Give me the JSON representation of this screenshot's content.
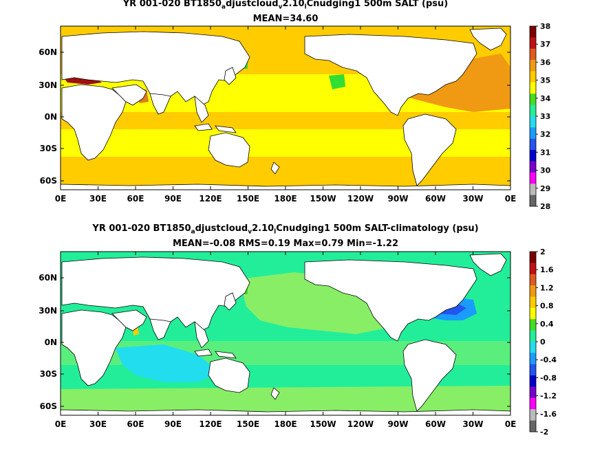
{
  "panels": [
    {
      "title_prefix": "YR 001-020 BT1850",
      "title_sub1": "a",
      "title_mid1": "djustcloud",
      "title_sub2": "v",
      "title_mid2": "2.10",
      "title_sub3": "l",
      "title_suffix": "Cnudging1 500m SALT (psu)",
      "stats": "MEAN=34.60",
      "colorbar_labels": [
        "38",
        "37",
        "36",
        "35",
        "34",
        "33",
        "32",
        "31",
        "30",
        "29",
        "28"
      ],
      "colorbar_colors": [
        "#7a0000",
        "#c01010",
        "#e05a1e",
        "#f09a14",
        "#ffcc00",
        "#ffff00",
        "#44dd22",
        "#22ee99",
        "#22ddee",
        "#1a9cff",
        "#2255ee",
        "#0000cc",
        "#7a00cc",
        "#ff00ff",
        "#bbbbbb",
        "#666666"
      ]
    },
    {
      "title_prefix": "YR 001-020 BT1850",
      "title_sub1": "a",
      "title_mid1": "djustcloud",
      "title_sub2": "v",
      "title_mid2": "2.10",
      "title_sub3": "l",
      "title_suffix": "Cnudging1 500m SALT-climatology (psu)",
      "stats": "MEAN=-0.08   RMS=0.19   Max=0.79   Min=-1.22",
      "colorbar_labels": [
        "2",
        "1.6",
        "1.2",
        "0.8",
        "0.4",
        "0",
        "-0.4",
        "-0.8",
        "-1.2",
        "-1.6",
        "-2"
      ],
      "colorbar_colors": [
        "#7a0000",
        "#c01010",
        "#e05a1e",
        "#f09a14",
        "#ffcc00",
        "#ffff00",
        "#44dd22",
        "#22ee99",
        "#22ddee",
        "#1a9cff",
        "#2255ee",
        "#0000cc",
        "#7a00cc",
        "#ff00ff",
        "#bbbbbb",
        "#666666"
      ]
    }
  ],
  "lat_labels": [
    "60N",
    "30N",
    "0N",
    "30S",
    "60S"
  ],
  "lon_labels": [
    "0E",
    "30E",
    "60E",
    "90E",
    "120E",
    "150E",
    "180E",
    "150W",
    "120W",
    "90W",
    "60W",
    "30W",
    "0E"
  ]
}
